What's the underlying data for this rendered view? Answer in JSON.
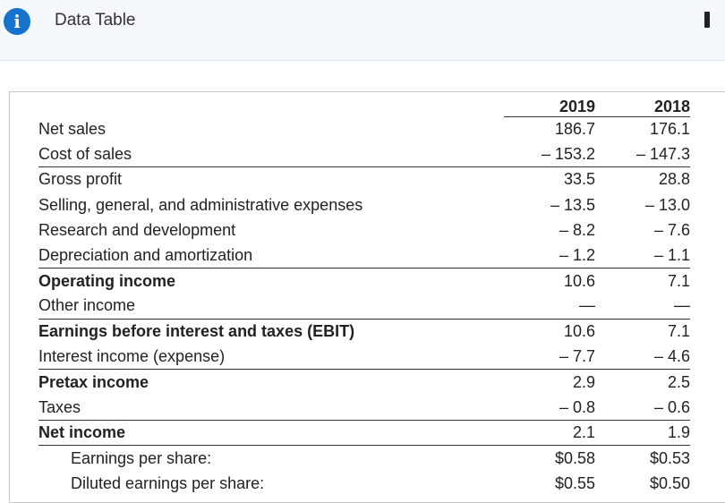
{
  "window": {
    "title": "Data Table",
    "info_icon": "info-icon",
    "minimize_icon": "minimize-icon"
  },
  "table": {
    "headers": [
      "",
      "2019",
      "2018"
    ],
    "rows": [
      {
        "label": "Net sales",
        "v2019": "186.7",
        "v2018": "176.1",
        "bold": false,
        "rule": false,
        "indent": false
      },
      {
        "label": "Cost of sales",
        "v2019": "– 153.2",
        "v2018": "– 147.3",
        "bold": false,
        "rule": false,
        "indent": false
      },
      {
        "label": "Gross profit",
        "v2019": "33.5",
        "v2018": "28.8",
        "bold": false,
        "rule": true,
        "indent": false
      },
      {
        "label": "Selling, general, and administrative expenses",
        "v2019": "– 13.5",
        "v2018": "– 13.0",
        "bold": false,
        "rule": false,
        "indent": false
      },
      {
        "label": "Research and development",
        "v2019": "– 8.2",
        "v2018": "– 7.6",
        "bold": false,
        "rule": false,
        "indent": false
      },
      {
        "label": "Depreciation and amortization",
        "v2019": "– 1.2",
        "v2018": "– 1.1",
        "bold": false,
        "rule": false,
        "indent": false
      },
      {
        "label": "Operating income",
        "v2019": "10.6",
        "v2018": "7.1",
        "bold": true,
        "rule": true,
        "indent": false
      },
      {
        "label": "Other income",
        "v2019": "—",
        "v2018": "—",
        "bold": false,
        "rule": false,
        "indent": false
      },
      {
        "label": "Earnings before interest and taxes (EBIT)",
        "v2019": "10.6",
        "v2018": "7.1",
        "bold": true,
        "rule": true,
        "indent": false
      },
      {
        "label": "Interest income (expense)",
        "v2019": "– 7.7",
        "v2018": "– 4.6",
        "bold": false,
        "rule": false,
        "indent": false
      },
      {
        "label": "Pretax income",
        "v2019": "2.9",
        "v2018": "2.5",
        "bold": true,
        "rule": true,
        "indent": false
      },
      {
        "label": "Taxes",
        "v2019": "– 0.8",
        "v2018": "– 0.6",
        "bold": false,
        "rule": false,
        "indent": false
      },
      {
        "label": "Net income",
        "v2019": "2.1",
        "v2018": "1.9",
        "bold": true,
        "rule": true,
        "indent": false
      },
      {
        "label": "Earnings per share:",
        "v2019": "$0.58",
        "v2018": "$0.53",
        "bold": false,
        "rule": true,
        "indent": true
      },
      {
        "label": "Diluted earnings per share:",
        "v2019": "$0.55",
        "v2018": "$0.50",
        "bold": false,
        "rule": false,
        "indent": true
      }
    ]
  }
}
